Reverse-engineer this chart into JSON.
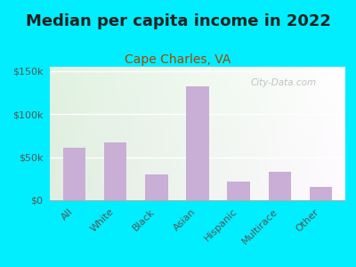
{
  "title": "Median per capita income in 2022",
  "subtitle": "Cape Charles, VA",
  "categories": [
    "All",
    "White",
    "Black",
    "Asian",
    "Hispanic",
    "Multirace",
    "Other"
  ],
  "values": [
    61000,
    67000,
    30000,
    132000,
    22000,
    33000,
    16000
  ],
  "bar_color": "#c9aed6",
  "background_outer": "#00eeff",
  "title_color": "#222222",
  "subtitle_color": "#aa4400",
  "tick_label_color": "#555555",
  "ytick_labels": [
    "$0",
    "$50k",
    "$100k",
    "$150k"
  ],
  "ytick_values": [
    0,
    50000,
    100000,
    150000
  ],
  "ylim": [
    0,
    155000
  ],
  "watermark": "City-Data.com",
  "title_fontsize": 13,
  "subtitle_fontsize": 10,
  "tick_fontsize": 8
}
